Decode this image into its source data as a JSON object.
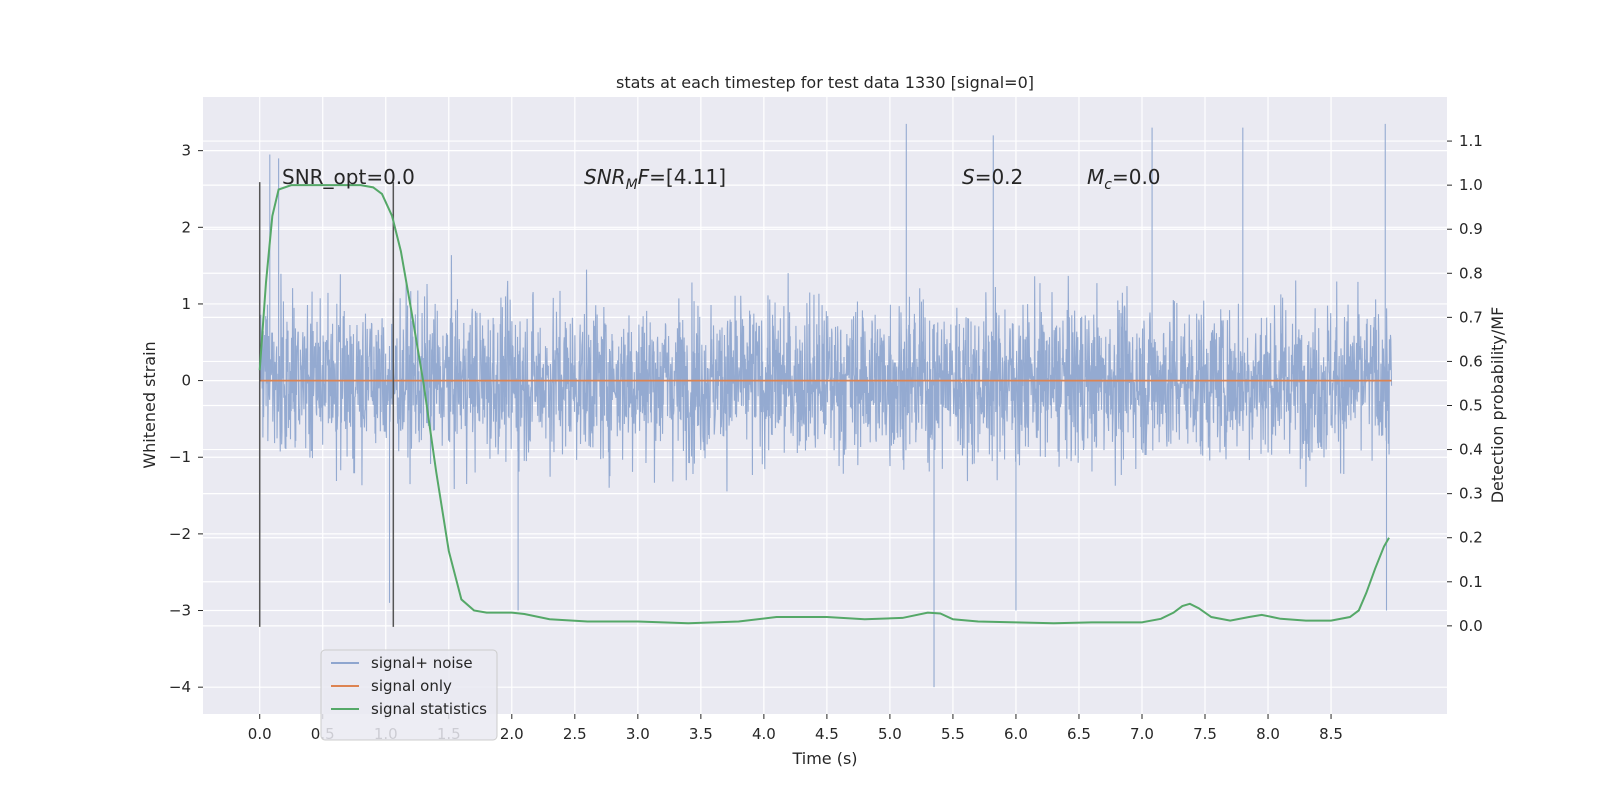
{
  "chart_data": {
    "type": "line",
    "title": "stats at each timestep for test data 1330 [signal=0]",
    "xlabel": "Time (s)",
    "ylabel": "Whitened strain",
    "y2label": "Detection probability/MF",
    "xlim": [
      -0.45,
      9.42
    ],
    "ylim": [
      -4.35,
      3.7
    ],
    "y2lim": [
      -0.2,
      1.2
    ],
    "x_ticks": [
      0.0,
      0.5,
      1.0,
      1.5,
      2.0,
      2.5,
      3.0,
      3.5,
      4.0,
      4.5,
      5.0,
      5.5,
      6.0,
      6.5,
      7.0,
      7.5,
      8.0,
      8.5
    ],
    "y_ticks": [
      3,
      2,
      1,
      0,
      -1,
      -2,
      -3,
      -4
    ],
    "y2_ticks": [
      1.1,
      1.0,
      0.9,
      0.8,
      0.7,
      0.6,
      0.5,
      0.4,
      0.3,
      0.2,
      0.1,
      0.0
    ],
    "grid": true,
    "legend_position": "lower-left",
    "annotations": {
      "snr_opt": "SNR_opt=0.0",
      "snr_mf_sym": "SNR",
      "snr_mf_sub": "M",
      "snr_mf_sym2": "F",
      "snr_mf_val": "=[4.11]",
      "s_sym": "S",
      "s_val": "=0.2",
      "mc_sym": "M",
      "mc_sub": "c",
      "mc_val": "=0.0"
    },
    "vertical_markers": [
      0.0,
      1.06
    ],
    "noise_envelope": {
      "x_start": 0.0,
      "x_end": 8.98,
      "typical_min": -1.8,
      "typical_max": 1.8,
      "peak_max": 3.35,
      "peak_min": -4.0
    },
    "series": [
      {
        "name": "signal+ noise",
        "color": "#8fa6cf"
      },
      {
        "name": "signal only",
        "color": "#dd8452",
        "x": [
          0.0,
          8.98
        ],
        "y": [
          0.0,
          0.0
        ]
      },
      {
        "name": "signal statistics",
        "color": "#55a868",
        "x": [
          0.0,
          0.05,
          0.1,
          0.15,
          0.25,
          0.4,
          0.6,
          0.8,
          0.9,
          0.97,
          1.05,
          1.12,
          1.2,
          1.3,
          1.4,
          1.5,
          1.6,
          1.7,
          1.8,
          1.9,
          2.0,
          2.1,
          2.3,
          2.6,
          3.0,
          3.4,
          3.8,
          4.1,
          4.5,
          4.8,
          5.1,
          5.3,
          5.4,
          5.5,
          5.7,
          6.0,
          6.3,
          6.6,
          7.0,
          7.15,
          7.25,
          7.32,
          7.38,
          7.45,
          7.55,
          7.7,
          7.85,
          7.95,
          8.1,
          8.3,
          8.5,
          8.65,
          8.72,
          8.78,
          8.85,
          8.92,
          8.96
        ],
        "y": [
          0.58,
          0.78,
          0.93,
          0.99,
          1.0,
          1.0,
          1.0,
          1.0,
          0.995,
          0.98,
          0.93,
          0.85,
          0.72,
          0.55,
          0.35,
          0.17,
          0.06,
          0.035,
          0.03,
          0.03,
          0.03,
          0.027,
          0.015,
          0.01,
          0.01,
          0.006,
          0.01,
          0.02,
          0.02,
          0.015,
          0.018,
          0.03,
          0.028,
          0.015,
          0.01,
          0.008,
          0.006,
          0.008,
          0.008,
          0.016,
          0.03,
          0.045,
          0.05,
          0.04,
          0.02,
          0.012,
          0.02,
          0.025,
          0.016,
          0.012,
          0.012,
          0.02,
          0.035,
          0.075,
          0.13,
          0.18,
          0.2
        ]
      }
    ]
  }
}
